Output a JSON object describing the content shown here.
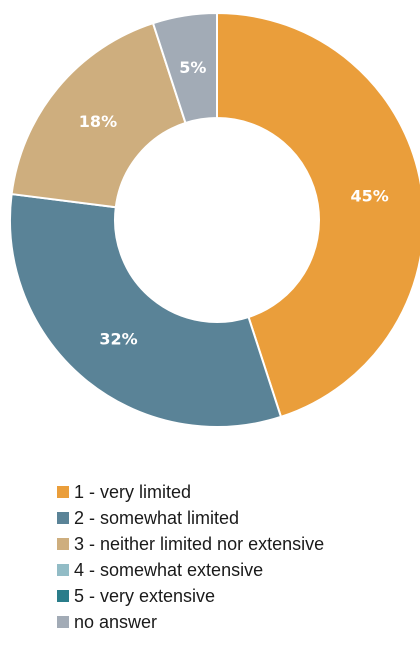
{
  "chart_data": {
    "type": "pie",
    "subtype": "donut",
    "title": "",
    "slices": [
      {
        "category": "1 - very limited",
        "value": 45,
        "label": "45%",
        "color": "#EA9E3B"
      },
      {
        "category": "2 - somewhat limited",
        "value": 32,
        "label": "32%",
        "color": "#5A8397"
      },
      {
        "category": "3 - neither limited nor extensive",
        "value": 18,
        "label": "18%",
        "color": "#CEAE7E"
      },
      {
        "category": "4 - somewhat extensive",
        "value": 0,
        "label": "",
        "color": "#92BCC6"
      },
      {
        "category": "5 - very extensive",
        "value": 0,
        "label": "",
        "color": "#2A7D8A"
      },
      {
        "category": "no answer",
        "value": 5,
        "label": "5%",
        "color": "#A2ABB6"
      }
    ],
    "legend": {
      "position": "bottom",
      "entries": [
        "1 - very limited",
        "2 - somewhat limited",
        "3 - neither limited nor extensive",
        "4 - somewhat extensive",
        "5 - very extensive",
        "no answer"
      ]
    }
  }
}
